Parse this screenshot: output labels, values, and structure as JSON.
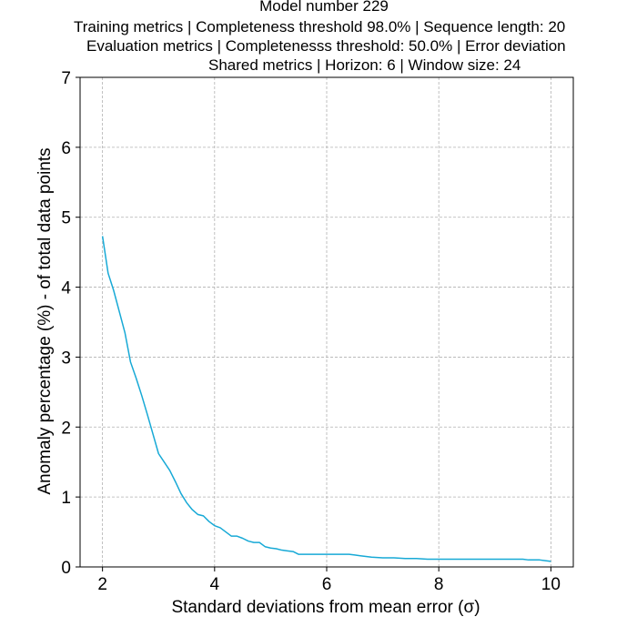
{
  "chart_data": {
    "type": "line",
    "title_lines": [
      "Model number 229",
      "Training metrics | Completeness threshold 98.0% | Sequence length: 20",
      "Evaluation metrics | Completenesss threshold: 50.0% | Error deviation",
      "Shared metrics | Horizon: 6 | Window size: 24"
    ],
    "xlabel": "Standard deviations from mean error (σ)",
    "ylabel": "Anomaly percentage (%) - of total data points",
    "xlim": [
      1.6,
      10.4
    ],
    "ylim": [
      0,
      7
    ],
    "xticks": [
      2,
      4,
      6,
      8,
      10
    ],
    "yticks": [
      0,
      1,
      2,
      3,
      4,
      5,
      6,
      7
    ],
    "grid": true,
    "line_color": "#17a9d6",
    "series": [
      {
        "x": [
          2.0,
          2.1,
          2.2,
          2.3,
          2.4,
          2.5,
          2.6,
          2.7,
          2.8,
          2.9,
          3.0,
          3.1,
          3.2,
          3.3,
          3.4,
          3.5,
          3.6,
          3.7,
          3.8,
          3.9,
          4.0,
          4.1,
          4.2,
          4.3,
          4.4,
          4.5,
          4.6,
          4.7,
          4.8,
          4.9,
          5.0,
          5.1,
          5.2,
          5.3,
          5.4,
          5.5,
          5.6,
          5.8,
          6.0,
          6.2,
          6.4,
          6.5,
          6.6,
          6.8,
          7.0,
          7.2,
          7.4,
          7.6,
          7.8,
          8.0,
          8.5,
          9.0,
          9.5,
          9.6,
          9.8,
          9.9,
          10.0
        ],
        "y": [
          4.73,
          4.2,
          3.95,
          3.65,
          3.35,
          2.93,
          2.7,
          2.45,
          2.18,
          1.9,
          1.62,
          1.5,
          1.38,
          1.22,
          1.05,
          0.92,
          0.82,
          0.75,
          0.73,
          0.65,
          0.59,
          0.56,
          0.5,
          0.44,
          0.44,
          0.41,
          0.37,
          0.35,
          0.35,
          0.29,
          0.27,
          0.26,
          0.24,
          0.23,
          0.22,
          0.18,
          0.18,
          0.18,
          0.18,
          0.18,
          0.18,
          0.17,
          0.16,
          0.14,
          0.13,
          0.13,
          0.12,
          0.12,
          0.11,
          0.11,
          0.11,
          0.11,
          0.11,
          0.1,
          0.1,
          0.09,
          0.08
        ]
      }
    ]
  }
}
